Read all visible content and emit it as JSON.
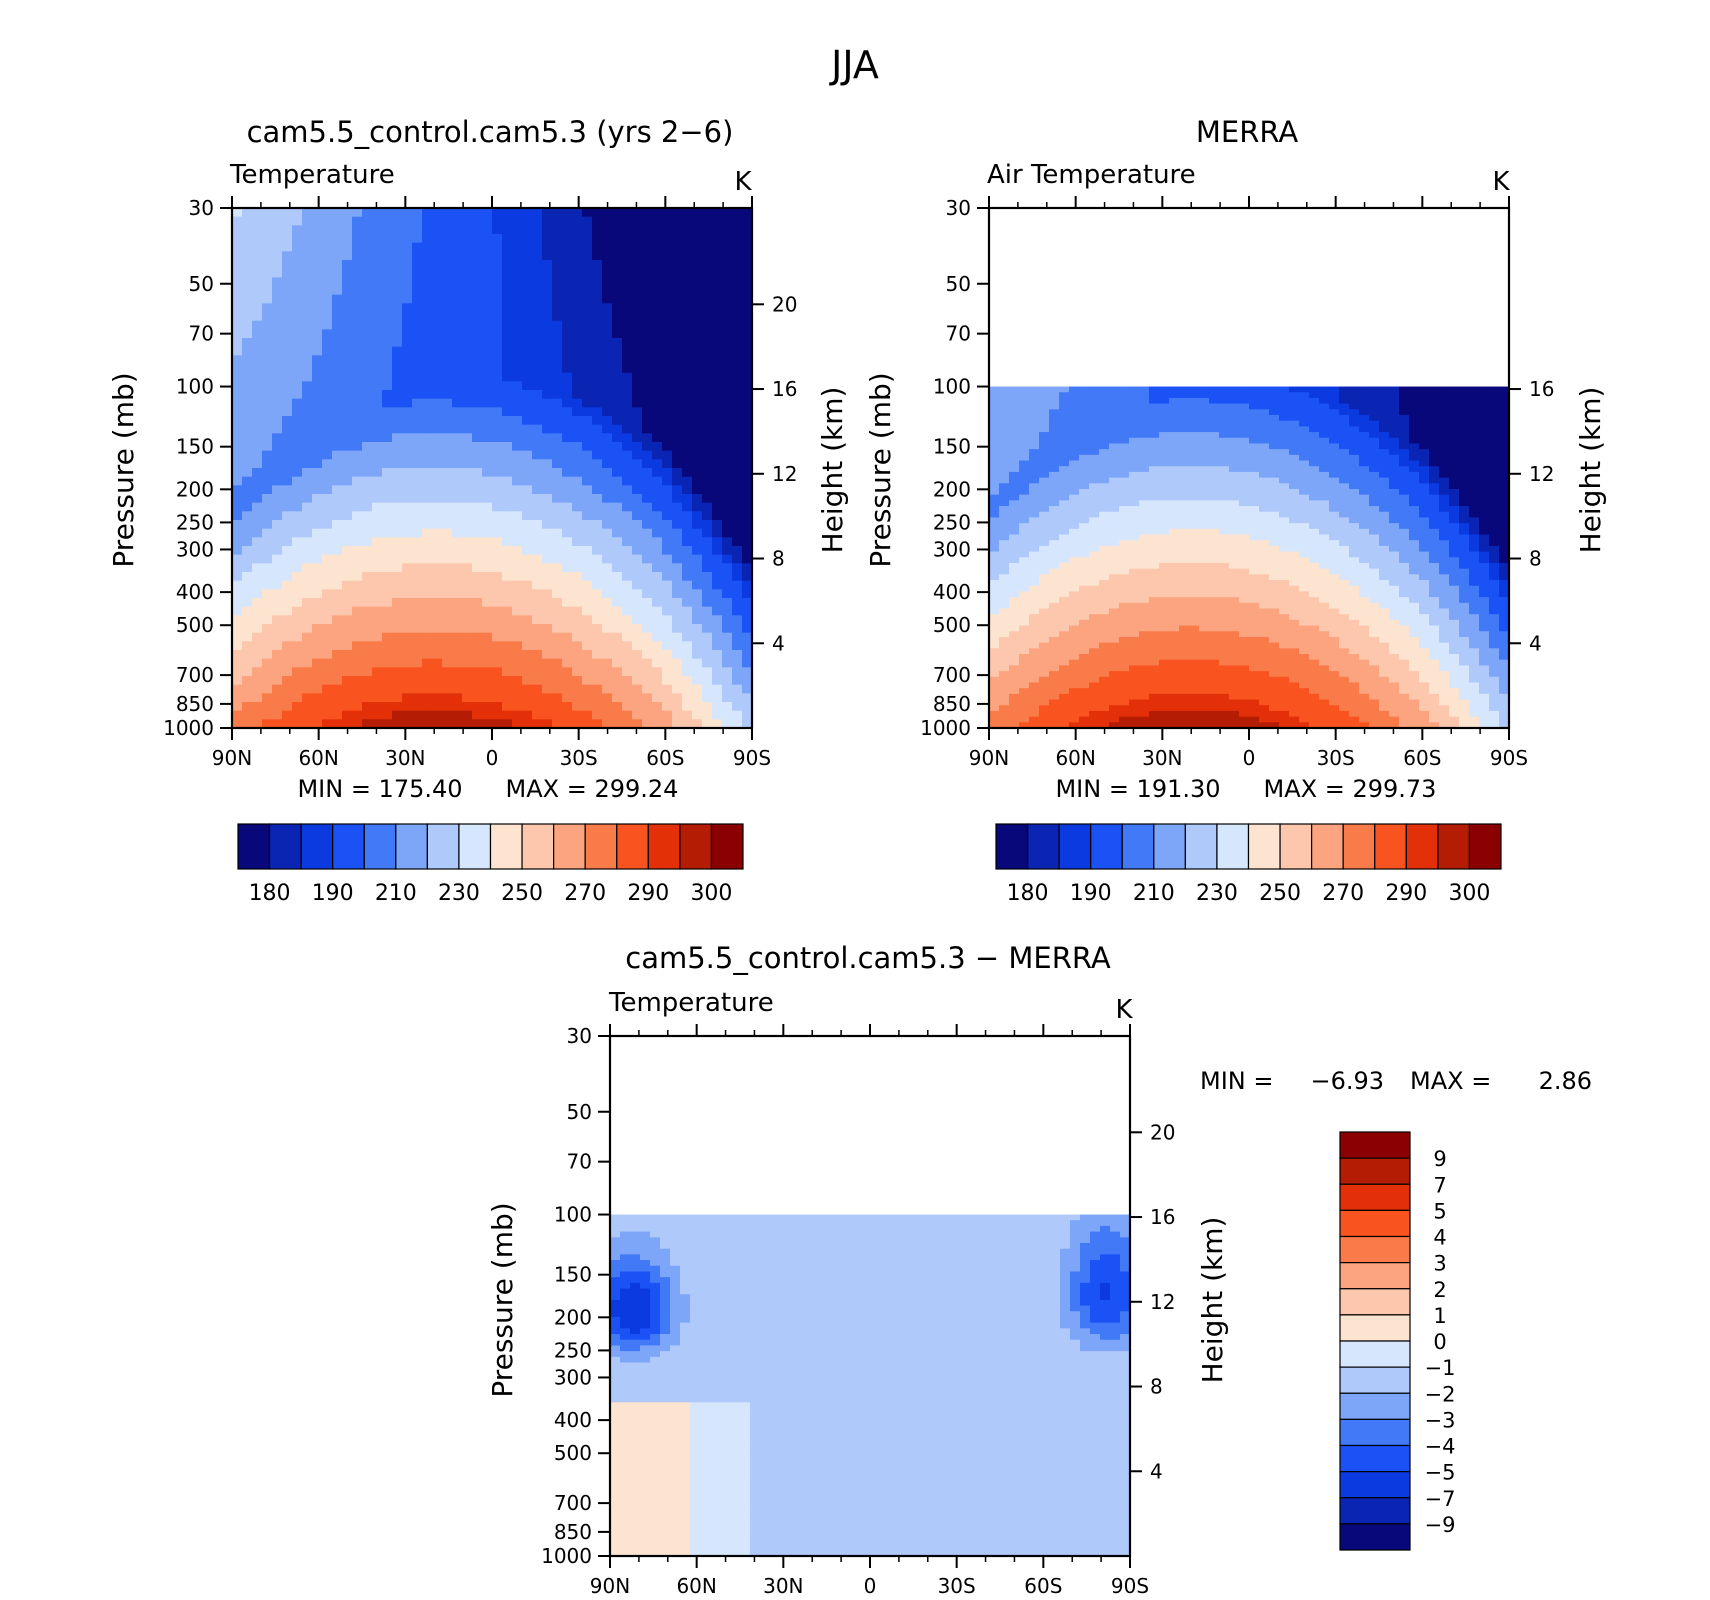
{
  "figure": {
    "season": "JJA"
  },
  "palettes": {
    "abs": [
      "#08087a",
      "#0a24b4",
      "#0b3ae0",
      "#1b52f5",
      "#4179f6",
      "#7ea6f8",
      "#afc9fb",
      "#d6e6fd",
      "#fde4d0",
      "#fcc7ac",
      "#fba47f",
      "#fa7b4a",
      "#f95420",
      "#e33008",
      "#b41c03",
      "#8b0101"
    ],
    "diff": [
      "#08087a",
      "#0a24b4",
      "#0b3ae0",
      "#1b52f5",
      "#4179f6",
      "#7ea6f8",
      "#afc9fb",
      "#d6e6fd",
      "#fde4d0",
      "#fcc7ac",
      "#fba47f",
      "#fa7b4a",
      "#f95420",
      "#e33008",
      "#b41c03",
      "#8b0101"
    ]
  },
  "chart_data": [
    {
      "type": "heatmap",
      "title": "cam5.5_control.cam5.3 (yrs 2−6)",
      "variable": "Temperature",
      "units": "K",
      "ylabel": "Pressure (mb)",
      "y2label": "Height (km)",
      "xticks": [
        "90N",
        "60N",
        "30N",
        "0",
        "30S",
        "60S",
        "90S"
      ],
      "yticks": [
        30,
        50,
        70,
        100,
        150,
        200,
        250,
        300,
        400,
        500,
        700,
        850,
        1000
      ],
      "y2ticks": [
        4,
        8,
        12,
        16,
        20
      ],
      "ylim": [
        1000,
        30
      ],
      "data_top_pressure": 30,
      "min_label": "MIN = 175.40",
      "max_label": "MAX = 299.24",
      "min": 175.4,
      "max": 299.24,
      "colorbar_labels": [
        "180",
        "190",
        "210",
        "230",
        "250",
        "270",
        "290",
        "300"
      ],
      "palette": "abs"
    },
    {
      "type": "heatmap",
      "title": "MERRA",
      "variable": "Air Temperature",
      "units": "K",
      "ylabel": "Pressure (mb)",
      "y2label": "Height (km)",
      "xticks": [
        "90N",
        "60N",
        "30N",
        "0",
        "30S",
        "60S",
        "90S"
      ],
      "yticks": [
        30,
        50,
        70,
        100,
        150,
        200,
        250,
        300,
        400,
        500,
        700,
        850,
        1000
      ],
      "y2ticks": [
        4,
        8,
        12,
        16
      ],
      "ylim": [
        1000,
        30
      ],
      "data_top_pressure": 100,
      "min_label": "MIN = 191.30",
      "max_label": "MAX = 299.73",
      "min": 191.3,
      "max": 299.73,
      "colorbar_labels": [
        "180",
        "190",
        "210",
        "230",
        "250",
        "270",
        "290",
        "300"
      ],
      "palette": "abs"
    },
    {
      "type": "heatmap",
      "title": "cam5.5_control.cam5.3 − MERRA",
      "variable": "Temperature",
      "units": "K",
      "ylabel": "Pressure (mb)",
      "y2label": "Height (km)",
      "xticks": [
        "90N",
        "60N",
        "30N",
        "0",
        "30S",
        "60S",
        "90S"
      ],
      "yticks": [
        30,
        50,
        70,
        100,
        150,
        200,
        250,
        300,
        400,
        500,
        700,
        850,
        1000
      ],
      "y2ticks": [
        4,
        8,
        12,
        16,
        20
      ],
      "ylim": [
        1000,
        30
      ],
      "data_top_pressure": 100,
      "min_label": "MIN =",
      "min_value": "−6.93",
      "max_label": "MAX =",
      "max_value": "2.86",
      "min": -6.93,
      "max": 2.86,
      "colorbar_labels": [
        "9",
        "7",
        "5",
        "4",
        "3",
        "2",
        "1",
        "0",
        "−1",
        "−2",
        "−3",
        "−4",
        "−5",
        "−7",
        "−9"
      ],
      "palette": "diff"
    }
  ]
}
